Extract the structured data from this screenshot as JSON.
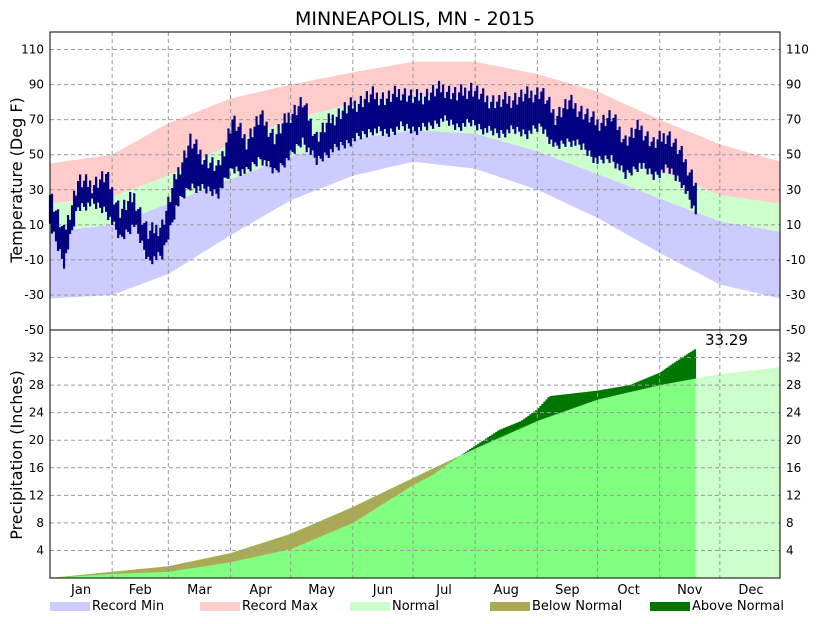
{
  "chart_data": {
    "type": "area",
    "title": "MINNEAPOLIS, MN - 2015",
    "months": [
      "Jan",
      "Feb",
      "Mar",
      "Apr",
      "May",
      "Jun",
      "Jul",
      "Aug",
      "Sep",
      "Oct",
      "Nov",
      "Dec"
    ],
    "temperature": {
      "ylabel": "Temperature (Deg F)",
      "ylim": [
        -50,
        120
      ],
      "ticks": [
        110,
        90,
        70,
        50,
        30,
        10,
        -10,
        -30,
        -50
      ],
      "record_max_day": [
        {
          "day": 1,
          "value": 45
        },
        {
          "day": 32,
          "value": 50
        },
        {
          "day": 60,
          "value": 68
        },
        {
          "day": 91,
          "value": 82
        },
        {
          "day": 121,
          "value": 90
        },
        {
          "day": 152,
          "value": 97
        },
        {
          "day": 182,
          "value": 103
        },
        {
          "day": 213,
          "value": 103
        },
        {
          "day": 244,
          "value": 96
        },
        {
          "day": 274,
          "value": 86
        },
        {
          "day": 305,
          "value": 70
        },
        {
          "day": 335,
          "value": 56
        },
        {
          "day": 365,
          "value": 46
        }
      ],
      "normal_high_day": [
        {
          "day": 1,
          "value": 22
        },
        {
          "day": 32,
          "value": 26
        },
        {
          "day": 60,
          "value": 38
        },
        {
          "day": 91,
          "value": 56
        },
        {
          "day": 121,
          "value": 70
        },
        {
          "day": 152,
          "value": 79
        },
        {
          "day": 182,
          "value": 84
        },
        {
          "day": 213,
          "value": 82
        },
        {
          "day": 244,
          "value": 73
        },
        {
          "day": 274,
          "value": 58
        },
        {
          "day": 305,
          "value": 41
        },
        {
          "day": 335,
          "value": 27
        },
        {
          "day": 365,
          "value": 22
        }
      ],
      "normal_low_day": [
        {
          "day": 1,
          "value": 6
        },
        {
          "day": 32,
          "value": 10
        },
        {
          "day": 60,
          "value": 22
        },
        {
          "day": 91,
          "value": 36
        },
        {
          "day": 121,
          "value": 49
        },
        {
          "day": 152,
          "value": 59
        },
        {
          "day": 182,
          "value": 64
        },
        {
          "day": 213,
          "value": 62
        },
        {
          "day": 244,
          "value": 52
        },
        {
          "day": 274,
          "value": 39
        },
        {
          "day": 305,
          "value": 25
        },
        {
          "day": 335,
          "value": 12
        },
        {
          "day": 365,
          "value": 6
        }
      ],
      "record_min_day": [
        {
          "day": 1,
          "value": -32
        },
        {
          "day": 32,
          "value": -30
        },
        {
          "day": 60,
          "value": -18
        },
        {
          "day": 91,
          "value": 4
        },
        {
          "day": 121,
          "value": 24
        },
        {
          "day": 152,
          "value": 38
        },
        {
          "day": 182,
          "value": 46
        },
        {
          "day": 213,
          "value": 42
        },
        {
          "day": 244,
          "value": 30
        },
        {
          "day": 274,
          "value": 14
        },
        {
          "day": 305,
          "value": -6
        },
        {
          "day": 335,
          "value": -24
        },
        {
          "day": 365,
          "value": -32
        }
      ],
      "actual_2015": [
        {
          "day": 1,
          "high": 28,
          "low": 10
        },
        {
          "day": 8,
          "high": 5,
          "low": -12
        },
        {
          "day": 15,
          "high": 35,
          "low": 20
        },
        {
          "day": 22,
          "high": 33,
          "low": 22
        },
        {
          "day": 29,
          "high": 38,
          "low": 18
        },
        {
          "day": 36,
          "high": 18,
          "low": 2
        },
        {
          "day": 43,
          "high": 26,
          "low": 10
        },
        {
          "day": 50,
          "high": 5,
          "low": -10
        },
        {
          "day": 57,
          "high": 10,
          "low": -8
        },
        {
          "day": 64,
          "high": 38,
          "low": 20
        },
        {
          "day": 71,
          "high": 58,
          "low": 32
        },
        {
          "day": 78,
          "high": 48,
          "low": 30
        },
        {
          "day": 85,
          "high": 42,
          "low": 28
        },
        {
          "day": 92,
          "high": 70,
          "low": 42
        },
        {
          "day": 99,
          "high": 58,
          "low": 40
        },
        {
          "day": 106,
          "high": 72,
          "low": 48
        },
        {
          "day": 113,
          "high": 60,
          "low": 40
        },
        {
          "day": 120,
          "high": 72,
          "low": 48
        },
        {
          "day": 127,
          "high": 80,
          "low": 58
        },
        {
          "day": 134,
          "high": 60,
          "low": 46
        },
        {
          "day": 141,
          "high": 70,
          "low": 52
        },
        {
          "day": 148,
          "high": 76,
          "low": 56
        },
        {
          "day": 155,
          "high": 80,
          "low": 60
        },
        {
          "day": 162,
          "high": 84,
          "low": 64
        },
        {
          "day": 169,
          "high": 82,
          "low": 62
        },
        {
          "day": 176,
          "high": 86,
          "low": 66
        },
        {
          "day": 183,
          "high": 82,
          "low": 64
        },
        {
          "day": 190,
          "high": 85,
          "low": 66
        },
        {
          "day": 197,
          "high": 88,
          "low": 70
        },
        {
          "day": 204,
          "high": 84,
          "low": 66
        },
        {
          "day": 211,
          "high": 88,
          "low": 68
        },
        {
          "day": 218,
          "high": 82,
          "low": 64
        },
        {
          "day": 225,
          "high": 80,
          "low": 62
        },
        {
          "day": 232,
          "high": 82,
          "low": 64
        },
        {
          "day": 239,
          "high": 84,
          "low": 62
        },
        {
          "day": 246,
          "high": 86,
          "low": 66
        },
        {
          "day": 253,
          "high": 72,
          "low": 54
        },
        {
          "day": 260,
          "high": 80,
          "low": 58
        },
        {
          "day": 267,
          "high": 74,
          "low": 54
        },
        {
          "day": 274,
          "high": 68,
          "low": 46
        },
        {
          "day": 281,
          "high": 72,
          "low": 48
        },
        {
          "day": 288,
          "high": 58,
          "low": 38
        },
        {
          "day": 295,
          "high": 66,
          "low": 44
        },
        {
          "day": 302,
          "high": 56,
          "low": 38
        },
        {
          "day": 309,
          "high": 62,
          "low": 42
        },
        {
          "day": 316,
          "high": 50,
          "low": 34
        },
        {
          "day": 323,
          "high": 34,
          "low": 16
        }
      ]
    },
    "precipitation": {
      "ylabel": "Precipitation (Inches)",
      "ylim": [
        0,
        36
      ],
      "ticks": [
        32,
        28,
        24,
        20,
        16,
        12,
        8,
        4
      ],
      "current_total_label": "33.29",
      "last_observed_day": 323,
      "normal_cumulative": [
        {
          "day": 1,
          "value": 0
        },
        {
          "day": 32,
          "value": 0.9
        },
        {
          "day": 60,
          "value": 1.7
        },
        {
          "day": 91,
          "value": 3.6
        },
        {
          "day": 121,
          "value": 6.4
        },
        {
          "day": 152,
          "value": 10.3
        },
        {
          "day": 182,
          "value": 14.5
        },
        {
          "day": 213,
          "value": 18.8
        },
        {
          "day": 244,
          "value": 22.8
        },
        {
          "day": 274,
          "value": 25.9
        },
        {
          "day": 305,
          "value": 28.0
        },
        {
          "day": 335,
          "value": 29.6
        },
        {
          "day": 365,
          "value": 30.6
        }
      ],
      "actual_cumulative": [
        {
          "day": 1,
          "value": 0
        },
        {
          "day": 32,
          "value": 0.6
        },
        {
          "day": 60,
          "value": 0.9
        },
        {
          "day": 91,
          "value": 2.3
        },
        {
          "day": 121,
          "value": 4.2
        },
        {
          "day": 152,
          "value": 8.0
        },
        {
          "day": 182,
          "value": 13.5
        },
        {
          "day": 192,
          "value": 15.0
        },
        {
          "day": 198,
          "value": 16.3
        },
        {
          "day": 213,
          "value": 19.2
        },
        {
          "day": 225,
          "value": 21.5
        },
        {
          "day": 236,
          "value": 22.8
        },
        {
          "day": 244,
          "value": 24.5
        },
        {
          "day": 250,
          "value": 26.4
        },
        {
          "day": 274,
          "value": 27.2
        },
        {
          "day": 290,
          "value": 28.0
        },
        {
          "day": 305,
          "value": 29.8
        },
        {
          "day": 315,
          "value": 31.8
        },
        {
          "day": 323,
          "value": 33.29
        }
      ]
    },
    "legend": {
      "placement": "bottom",
      "items": [
        {
          "label": "Record Min",
          "color": "#ccccff"
        },
        {
          "label": "Record Max",
          "color": "#ffcccc"
        },
        {
          "label": "Normal",
          "color": "#ccffcc"
        },
        {
          "label": "Below Normal",
          "color": "#aaaa55"
        },
        {
          "label": "Above Normal",
          "color": "#007700"
        }
      ]
    },
    "colors": {
      "record_min": "#ccccff",
      "record_max": "#ffcccc",
      "normal_band": "#ccffcc",
      "normal_precip": "#80ff80",
      "normal_precip_future": "#ccffcc",
      "below_normal": "#aaaa55",
      "above_normal": "#007700",
      "actual_temp": "#000080",
      "grid": "#999999"
    },
    "grid": true
  }
}
